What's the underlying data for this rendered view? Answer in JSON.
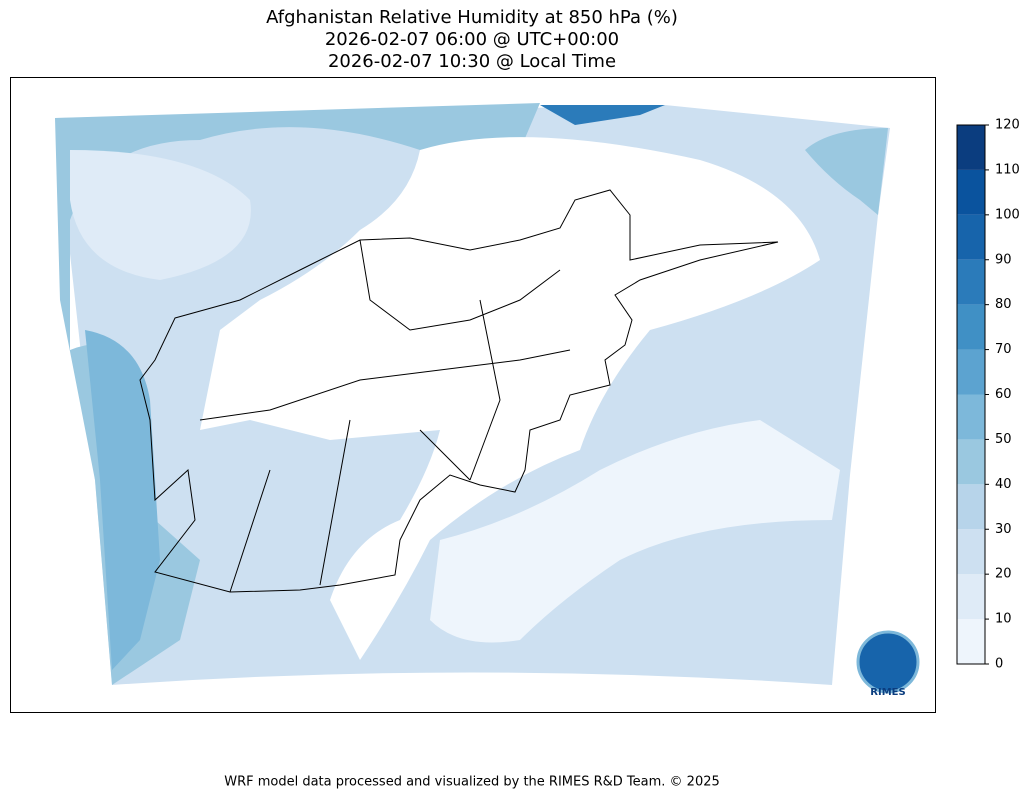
{
  "header": {
    "title": [
      "Afghanistan Relative Humidity at 850 hPa (%)",
      "2026-02-07 06:00 @ UTC+00:00",
      "2026-02-07 10:30 @ Local Time"
    ]
  },
  "colorbar": {
    "lim": [
      0,
      120
    ],
    "ticks": [
      0,
      10,
      20,
      30,
      40,
      50,
      60,
      70,
      80,
      90,
      100,
      110,
      120
    ],
    "colors": [
      "#eef5fc",
      "#dfebf7",
      "#cde0f1",
      "#b7d4ea",
      "#9ac8e0",
      "#7db8da",
      "#5ca3d0",
      "#4090c5",
      "#2b7bba",
      "#1764ab",
      "#0a539e",
      "#0b3d7f"
    ]
  },
  "logo": {
    "label": "RIMES"
  },
  "footer": "WRF model data processed and visualized by the RIMES R&D Team. © 2025"
}
